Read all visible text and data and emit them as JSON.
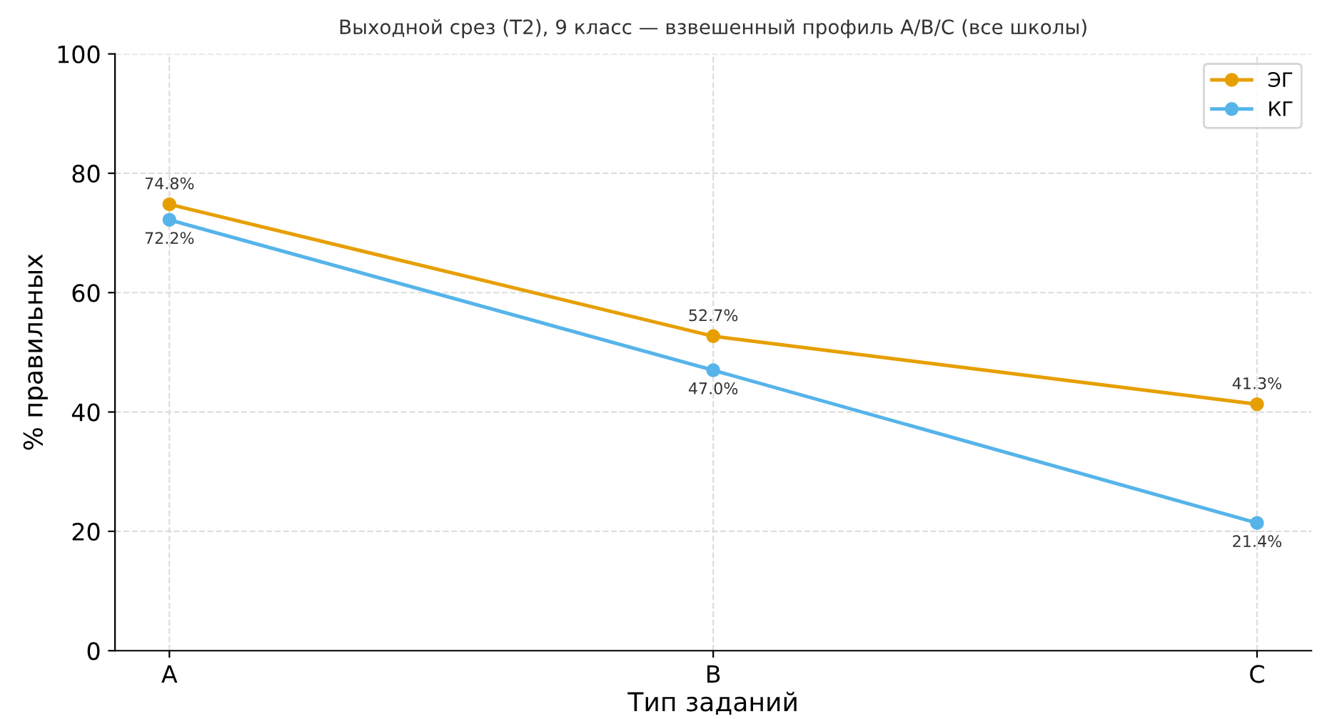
{
  "chart_data": {
    "type": "line",
    "title": "Выходной срез (T2), 9 класс — взвешенный профиль A/B/C (все школы)",
    "xlabel": "Тип заданий",
    "ylabel": "% правильных",
    "categories": [
      "A",
      "B",
      "C"
    ],
    "series": [
      {
        "name": "ЭГ",
        "color": "#e69f00",
        "values": [
          74.8,
          52.7,
          41.3
        ],
        "value_labels": [
          "74.8%",
          "52.7%",
          "41.3%"
        ]
      },
      {
        "name": "КГ",
        "color": "#56b4e9",
        "values": [
          72.2,
          47.0,
          21.4
        ],
        "value_labels": [
          "72.2%",
          "47.0%",
          "21.4%"
        ]
      }
    ],
    "ylim": [
      0,
      100
    ],
    "yticks": [
      0,
      20,
      40,
      60,
      80,
      100
    ],
    "grid": true,
    "legend": "top right",
    "marker": "circle",
    "line_style": "solid"
  }
}
